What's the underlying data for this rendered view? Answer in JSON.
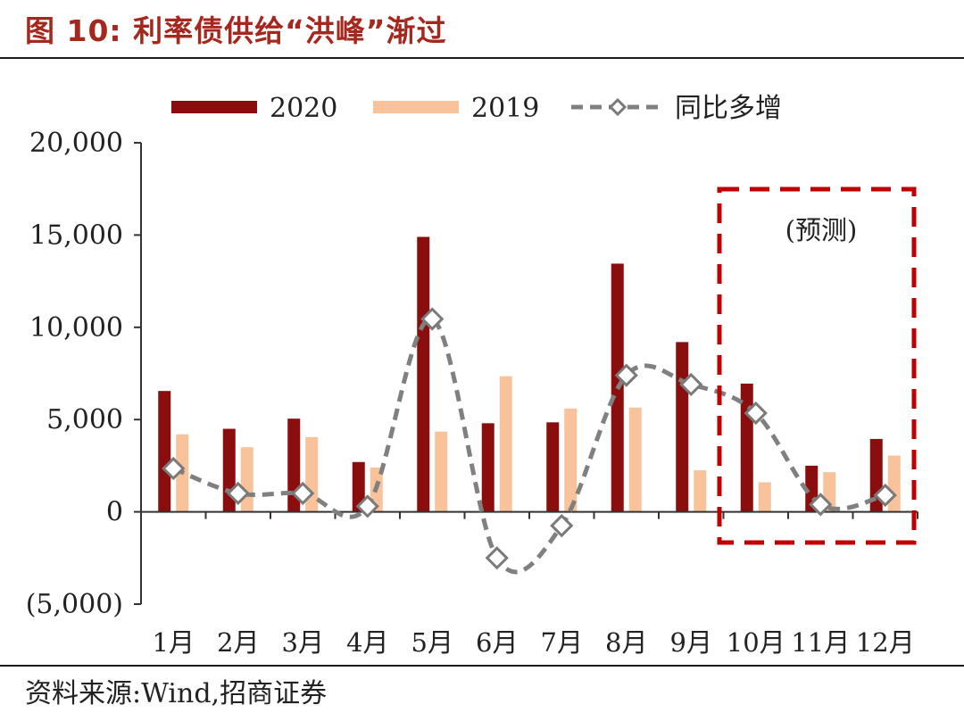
{
  "figure": {
    "title": "图 10:  利率债供给“洪峰”渐过",
    "source": "资料来源:Wind,招商证券"
  },
  "chart_data": {
    "type": "bar",
    "categories": [
      "1月",
      "2月",
      "3月",
      "4月",
      "5月",
      "6月",
      "7月",
      "8月",
      "9月",
      "10月",
      "11月",
      "12月"
    ],
    "series": [
      {
        "name": "2020",
        "kind": "bar",
        "color": "#8b0e0e",
        "values": [
          6550,
          4500,
          5050,
          2700,
          14900,
          4800,
          4850,
          13450,
          9200,
          6950,
          2500,
          3950
        ]
      },
      {
        "name": "2019",
        "kind": "bar",
        "color": "#f8c39a",
        "values": [
          4200,
          3500,
          4050,
          2400,
          4350,
          7350,
          5600,
          5650,
          2250,
          1600,
          2150,
          3050
        ]
      },
      {
        "name": "同比多增",
        "kind": "line",
        "color": "#808080",
        "style": "dashed",
        "marker": "diamond",
        "values": [
          2350,
          1000,
          1000,
          300,
          10450,
          -2500,
          -750,
          7400,
          6900,
          5350,
          400,
          900
        ]
      }
    ],
    "ylim": [
      -5000,
      20000
    ],
    "yticks": [
      -5000,
      0,
      5000,
      10000,
      15000,
      20000
    ],
    "ytick_labels": [
      "(5,000)",
      "0",
      "5,000",
      "10,000",
      "15,000",
      "20,000"
    ],
    "legend_position": "top",
    "annotation": {
      "text": "(预测)",
      "box_color": "#c00000",
      "covers_categories": [
        "10月",
        "11月",
        "12月"
      ]
    }
  }
}
